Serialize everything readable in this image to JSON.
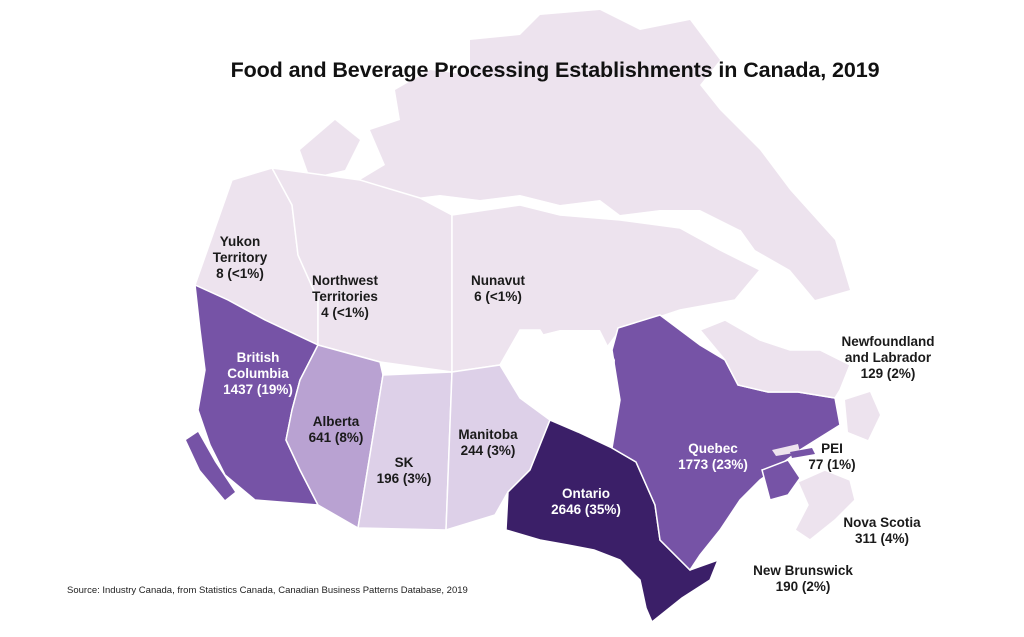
{
  "title": "Food and Beverage Processing Establishments in Canada, 2019",
  "source": "Source: Industry Canada, from Statistics Canada, Canadian Business Patterns Database, 2019",
  "colors": {
    "background": "#ffffff",
    "territory": "#ede3ee",
    "arctic": "#ede3ee",
    "scale_low": "#ddd0e8",
    "scale_mid": "#b9a2d2",
    "scale_high": "#7653a6",
    "scale_top": "#3b1f68",
    "water": "#ffffff"
  },
  "regions": [
    {
      "id": "yukon",
      "name_lines": [
        "Yukon",
        "Territory"
      ],
      "value_text": "8 (<1%)",
      "count": 8,
      "share": "<1%"
    },
    {
      "id": "nwt",
      "name_lines": [
        "Northwest",
        "Territories"
      ],
      "value_text": "4 (<1%)",
      "count": 4,
      "share": "<1%"
    },
    {
      "id": "nunavut",
      "name_lines": [
        "Nunavut"
      ],
      "value_text": "6 (<1%)",
      "count": 6,
      "share": "<1%"
    },
    {
      "id": "bc",
      "name_lines": [
        "British",
        "Columbia"
      ],
      "value_text": "1437 (19%)",
      "count": 1437,
      "share": "19%"
    },
    {
      "id": "alberta",
      "name_lines": [
        "Alberta"
      ],
      "value_text": "641 (8%)",
      "count": 641,
      "share": "8%"
    },
    {
      "id": "sk",
      "name_lines": [
        "SK"
      ],
      "value_text": "196 (3%)",
      "count": 196,
      "share": "3%"
    },
    {
      "id": "manitoba",
      "name_lines": [
        "Manitoba"
      ],
      "value_text": "244 (3%)",
      "count": 244,
      "share": "3%"
    },
    {
      "id": "ontario",
      "name_lines": [
        "Ontario"
      ],
      "value_text": "2646 (35%)",
      "count": 2646,
      "share": "35%"
    },
    {
      "id": "quebec",
      "name_lines": [
        "Quebec"
      ],
      "value_text": "1773 (23%)",
      "count": 1773,
      "share": "23%"
    },
    {
      "id": "nl",
      "name_lines": [
        "Newfoundland",
        "and Labrador"
      ],
      "value_text": "129 (2%)",
      "count": 129,
      "share": "2%"
    },
    {
      "id": "pei",
      "name_lines": [
        "PEI"
      ],
      "value_text": "77 (1%)",
      "count": 77,
      "share": "1%"
    },
    {
      "id": "ns",
      "name_lines": [
        "Nova Scotia"
      ],
      "value_text": "311 (4%)",
      "count": 311,
      "share": "4%"
    },
    {
      "id": "nb",
      "name_lines": [
        "New Brunswick"
      ],
      "value_text": "190 (2%)",
      "count": 190,
      "share": "2%"
    }
  ]
}
